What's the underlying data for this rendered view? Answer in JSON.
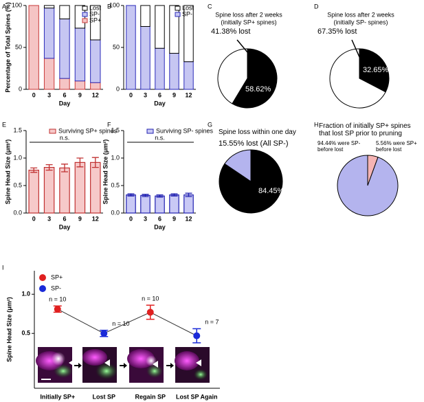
{
  "chart_data": [
    {
      "panel": "A",
      "type": "stacked_bar",
      "categories": [
        "0",
        "3",
        "6",
        "9",
        "12"
      ],
      "xlabel": "Day",
      "ylabel": "Percentage of Total Spines (%)",
      "ylim": [
        0,
        100
      ],
      "yticks": [
        0,
        50,
        100
      ],
      "series": [
        {
          "name": "SP+",
          "color": "#f5c4c4",
          "stroke": "#c83a3a",
          "values": [
            100,
            37,
            13,
            10,
            8
          ]
        },
        {
          "name": "SP-",
          "color": "#c6c6f2",
          "stroke": "#2a2ab8",
          "values": [
            0,
            60,
            71,
            63,
            51
          ]
        },
        {
          "name": "Lost",
          "color": "#ffffff",
          "stroke": "#000000",
          "values": [
            0,
            3,
            16,
            27,
            41
          ]
        }
      ]
    },
    {
      "panel": "B",
      "type": "stacked_bar",
      "categories": [
        "0",
        "3",
        "6",
        "9",
        "12"
      ],
      "xlabel": "Day",
      "ylim": [
        0,
        100
      ],
      "yticks": [
        0,
        50,
        100
      ],
      "series": [
        {
          "name": "SP-",
          "color": "#c6c6f2",
          "stroke": "#2a2ab8",
          "values": [
            100,
            75,
            49,
            43,
            33
          ]
        },
        {
          "name": "Lost",
          "color": "#ffffff",
          "stroke": "#000000",
          "values": [
            0,
            25,
            51,
            57,
            67
          ]
        }
      ]
    },
    {
      "panel": "C",
      "type": "pie",
      "title": "Spine loss after 2 weeks",
      "subtitle": "(initially SP+ spines)",
      "values": [
        58.62,
        41.38
      ],
      "value_labels": [
        "58.62%",
        "41.38% lost"
      ],
      "colors": [
        "#000000",
        "#ffffff"
      ]
    },
    {
      "panel": "D",
      "type": "pie",
      "title": "Spine loss after 2 weeks",
      "subtitle": "(initially SP- spines)",
      "values": [
        32.65,
        67.35
      ],
      "value_labels": [
        "32.65%",
        "67.35% lost"
      ],
      "colors": [
        "#000000",
        "#ffffff"
      ]
    },
    {
      "panel": "E",
      "type": "bar",
      "categories": [
        "0",
        "3",
        "6",
        "9",
        "12"
      ],
      "xlabel": "Day",
      "ylabel": "Spine Head Size (μm²)",
      "legend": "Surviving SP+ spines",
      "annotation": "n.s.",
      "color": "#f6c9c9",
      "stroke": "#c03030",
      "values": [
        0.78,
        0.83,
        0.82,
        0.92,
        0.92
      ],
      "errors": [
        0.04,
        0.05,
        0.07,
        0.08,
        0.09
      ],
      "ylim": [
        0,
        1.5
      ],
      "yticks": [
        {
          "value": 0,
          "label": "0.0"
        },
        0.5,
        {
          "value": 1,
          "label": "1.0"
        },
        1.5
      ]
    },
    {
      "panel": "F",
      "type": "bar",
      "categories": [
        "0",
        "3",
        "6",
        "9",
        "12"
      ],
      "xlabel": "Day",
      "ylabel": "Spine Head Size (μm²)",
      "legend": "Surviving SP- spines",
      "annotation": "n.s.",
      "color": "#c9c9f5",
      "stroke": "#2020b0",
      "values": [
        0.33,
        0.32,
        0.31,
        0.33,
        0.33
      ],
      "errors": [
        0.02,
        0.02,
        0.02,
        0.02,
        0.03
      ],
      "ylim": [
        0,
        1.5
      ],
      "yticks": [
        {
          "value": 0,
          "label": "0.0"
        },
        0.5,
        {
          "value": 1,
          "label": "1.0"
        },
        1.5
      ]
    },
    {
      "panel": "G",
      "type": "pie",
      "title": "Spine loss within one day",
      "values": [
        84.45,
        15.55
      ],
      "value_labels": [
        "84.45%",
        "15.55% lost (All SP-)"
      ],
      "colors": [
        "#000000",
        "#b4b4ee"
      ]
    },
    {
      "panel": "H",
      "type": "pie",
      "title": "Fraction of initially SP+ spines that lost SP prior to pruning",
      "values": [
        5.56,
        94.44
      ],
      "value_labels": [
        "5.56% were SP+ before lost",
        "94.44% were SP- before lost"
      ],
      "colors": [
        "#f5b4b4",
        "#b4b4ee"
      ]
    },
    {
      "panel": "I",
      "type": "line",
      "categories": [
        "Initially SP+",
        "Lost SP",
        "Regain SP",
        "Lost SP Again"
      ],
      "ylabel": "Spine Head Size (μm²)",
      "values": [
        0.81,
        0.5,
        0.77,
        0.47
      ],
      "errors": [
        0.04,
        0.04,
        0.09,
        0.09
      ],
      "annotations": [
        "n = 10",
        "n = 10",
        "n = 10",
        "n = 7"
      ],
      "colors": [
        "#e02020",
        "#1a2ad8",
        "#e02020",
        "#1a2ad8"
      ],
      "legend": [
        {
          "name": "SP+",
          "color": "#e02020"
        },
        {
          "name": "SP-",
          "color": "#1a2ad8"
        }
      ],
      "ylim": [
        -0.2,
        1.3
      ],
      "yticks": [
        0.5,
        {
          "value": 1,
          "label": "1.0"
        }
      ]
    }
  ]
}
